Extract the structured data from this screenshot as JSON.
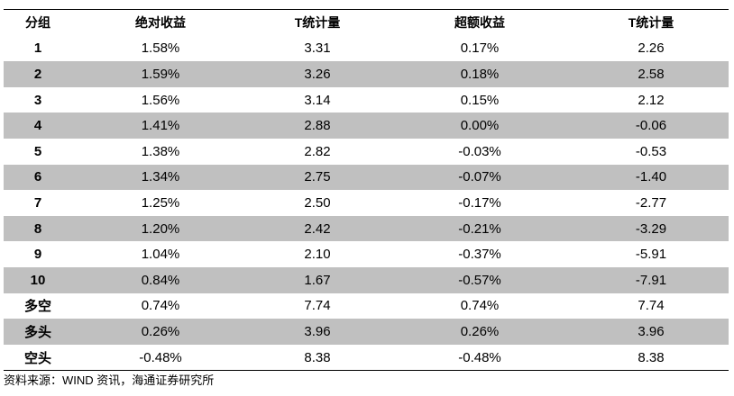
{
  "table": {
    "header": [
      "分组",
      "绝对收益",
      "T统计量",
      "超额收益",
      "T统计量"
    ],
    "rows": [
      [
        "1",
        "1.58%",
        "3.31",
        "0.17%",
        "2.26"
      ],
      [
        "2",
        "1.59%",
        "3.26",
        "0.18%",
        "2.58"
      ],
      [
        "3",
        "1.56%",
        "3.14",
        "0.15%",
        "2.12"
      ],
      [
        "4",
        "1.41%",
        "2.88",
        "0.00%",
        "-0.06"
      ],
      [
        "5",
        "1.38%",
        "2.82",
        "-0.03%",
        "-0.53"
      ],
      [
        "6",
        "1.34%",
        "2.75",
        "-0.07%",
        "-1.40"
      ],
      [
        "7",
        "1.25%",
        "2.50",
        "-0.17%",
        "-2.77"
      ],
      [
        "8",
        "1.20%",
        "2.42",
        "-0.21%",
        "-3.29"
      ],
      [
        "9",
        "1.04%",
        "2.10",
        "-0.37%",
        "-5.91"
      ],
      [
        "10",
        "0.84%",
        "1.67",
        "-0.57%",
        "-7.91"
      ],
      [
        "多空",
        "0.74%",
        "7.74",
        "0.74%",
        "7.74"
      ],
      [
        "多头",
        "0.26%",
        "3.96",
        "0.26%",
        "3.96"
      ],
      [
        "空头",
        "-0.48%",
        "8.38",
        "-0.48%",
        "8.38"
      ]
    ]
  },
  "source": "资料来源：WIND 资讯，海通证券研究所"
}
